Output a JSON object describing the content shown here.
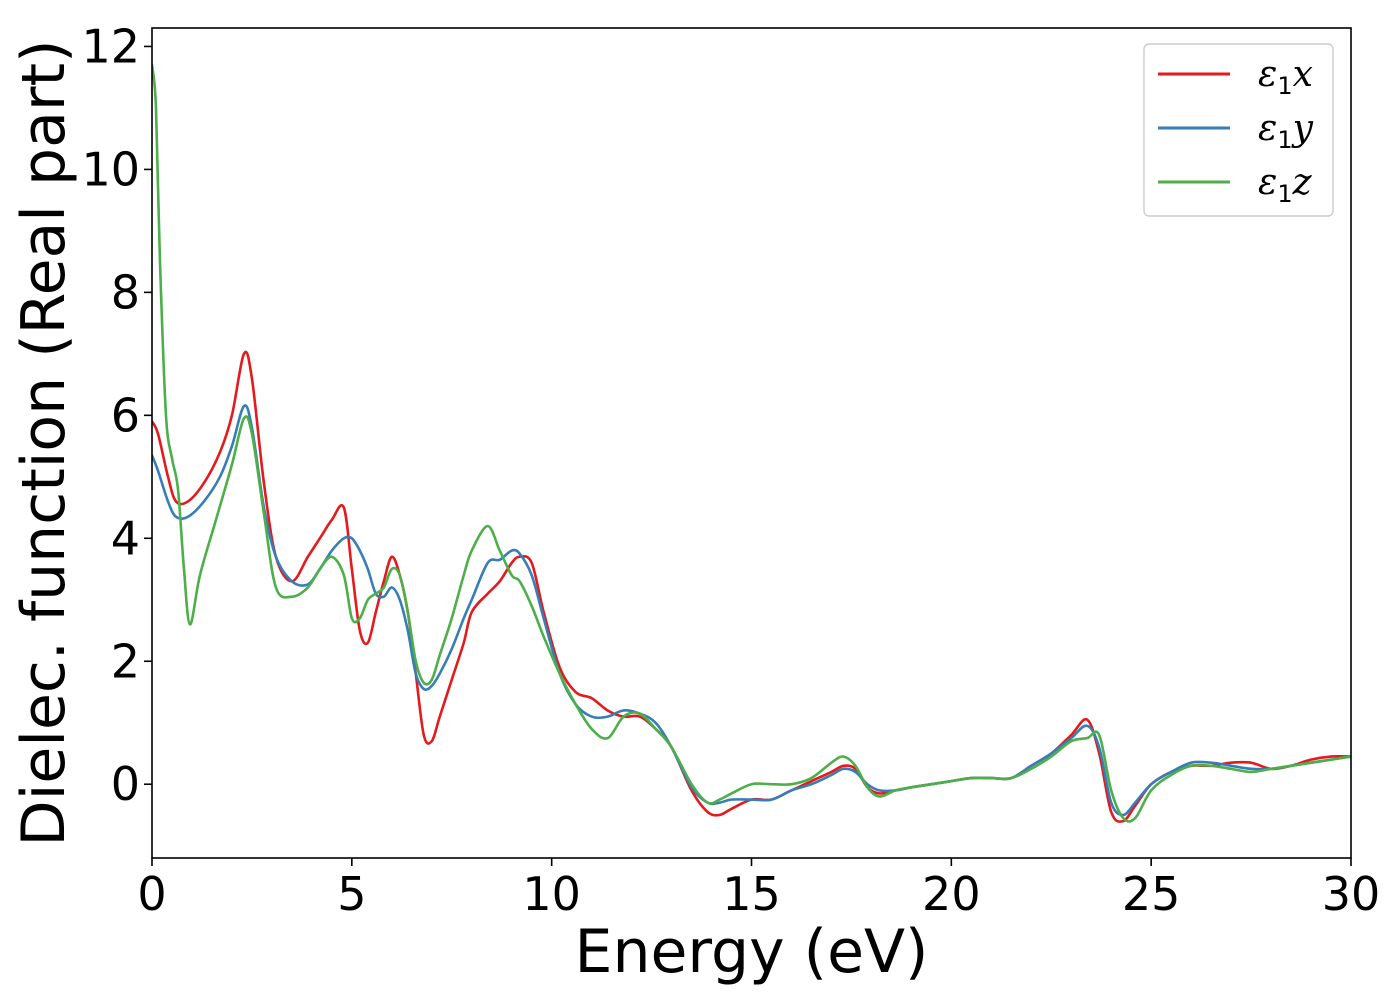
{
  "chart_data": {
    "type": "line",
    "xlabel": "Energy (eV)",
    "ylabel": "Dielec. function (Real part)",
    "xlim": [
      0,
      30
    ],
    "ylim": [
      -1.2,
      12.3
    ],
    "xticks": [
      0,
      5,
      10,
      15,
      20,
      25,
      30
    ],
    "yticks": [
      0,
      2,
      4,
      6,
      8,
      10,
      12
    ],
    "grid": false,
    "legend_position": "top-right",
    "series": [
      {
        "name": "ε₁x",
        "legend_symbol": "ε",
        "legend_sub": "1",
        "legend_var": "x",
        "color": "#e41a1c",
        "x": [
          0,
          0.15,
          0.4,
          0.6,
          0.9,
          1.3,
          1.7,
          2.0,
          2.3,
          2.5,
          2.8,
          3.1,
          3.5,
          3.9,
          4.2,
          4.5,
          4.8,
          5.0,
          5.2,
          5.4,
          5.6,
          5.8,
          6.0,
          6.2,
          6.4,
          6.6,
          6.8,
          7.0,
          7.2,
          7.5,
          7.8,
          8.0,
          8.4,
          8.7,
          9.0,
          9.2,
          9.5,
          9.8,
          10.2,
          10.6,
          11.0,
          11.4,
          11.8,
          12.2,
          12.6,
          13.0,
          13.5,
          13.9,
          14.2,
          14.5,
          15.0,
          15.5,
          16.0,
          16.5,
          17.0,
          17.3,
          17.6,
          17.9,
          18.2,
          18.6,
          19.0,
          19.5,
          20.0,
          20.5,
          21.0,
          21.5,
          22.0,
          22.5,
          23.0,
          23.4,
          23.7,
          24.0,
          24.3,
          24.6,
          25.0,
          25.5,
          26.0,
          26.5,
          27.0,
          27.5,
          28.0,
          28.5,
          29.0,
          29.5,
          30.0
        ],
        "values": [
          5.9,
          5.7,
          5.0,
          4.6,
          4.6,
          4.9,
          5.4,
          6.0,
          7.0,
          6.6,
          4.9,
          3.7,
          3.3,
          3.7,
          4.0,
          4.3,
          4.5,
          3.5,
          2.5,
          2.3,
          2.8,
          3.3,
          3.7,
          3.4,
          2.8,
          1.8,
          0.8,
          0.7,
          1.1,
          1.7,
          2.3,
          2.8,
          3.1,
          3.3,
          3.6,
          3.7,
          3.6,
          2.8,
          1.9,
          1.5,
          1.4,
          1.2,
          1.1,
          1.1,
          0.9,
          0.6,
          -0.1,
          -0.45,
          -0.5,
          -0.4,
          -0.25,
          -0.25,
          -0.1,
          0.05,
          0.2,
          0.3,
          0.25,
          -0.05,
          -0.15,
          -0.1,
          -0.05,
          0.0,
          0.05,
          0.1,
          0.1,
          0.1,
          0.3,
          0.5,
          0.8,
          1.05,
          0.5,
          -0.45,
          -0.6,
          -0.35,
          0.0,
          0.2,
          0.3,
          0.3,
          0.35,
          0.35,
          0.25,
          0.3,
          0.4,
          0.45,
          0.45
        ]
      },
      {
        "name": "ε₁y",
        "legend_symbol": "ε",
        "legend_sub": "1",
        "legend_var": "y",
        "color": "#377eb8",
        "x": [
          0,
          0.15,
          0.4,
          0.6,
          0.9,
          1.3,
          1.7,
          2.0,
          2.3,
          2.5,
          2.8,
          3.1,
          3.5,
          3.9,
          4.2,
          4.5,
          4.8,
          5.0,
          5.2,
          5.4,
          5.6,
          5.8,
          6.0,
          6.2,
          6.4,
          6.6,
          6.8,
          7.0,
          7.2,
          7.5,
          7.8,
          8.0,
          8.4,
          8.7,
          9.0,
          9.2,
          9.5,
          9.8,
          10.2,
          10.6,
          11.0,
          11.4,
          11.8,
          12.2,
          12.6,
          13.0,
          13.5,
          13.9,
          14.2,
          14.5,
          15.0,
          15.5,
          16.0,
          16.5,
          17.0,
          17.3,
          17.6,
          17.9,
          18.2,
          18.6,
          19.0,
          19.5,
          20.0,
          20.5,
          21.0,
          21.5,
          22.0,
          22.5,
          23.0,
          23.4,
          23.7,
          24.0,
          24.3,
          24.6,
          25.0,
          25.5,
          26.0,
          26.5,
          27.0,
          27.5,
          28.0,
          28.5,
          29.0,
          29.5,
          30.0
        ],
        "values": [
          5.35,
          5.1,
          4.6,
          4.35,
          4.35,
          4.6,
          5.0,
          5.5,
          6.15,
          5.8,
          4.5,
          3.7,
          3.3,
          3.25,
          3.5,
          3.8,
          4.0,
          4.0,
          3.8,
          3.5,
          3.1,
          3.05,
          3.2,
          3.0,
          2.5,
          1.8,
          1.55,
          1.6,
          1.8,
          2.2,
          2.7,
          3.0,
          3.6,
          3.65,
          3.8,
          3.75,
          3.4,
          2.7,
          1.8,
          1.3,
          1.1,
          1.1,
          1.2,
          1.15,
          1.0,
          0.6,
          -0.05,
          -0.3,
          -0.3,
          -0.25,
          -0.25,
          -0.25,
          -0.1,
          0.0,
          0.15,
          0.25,
          0.2,
          0.0,
          -0.1,
          -0.1,
          -0.05,
          0.0,
          0.05,
          0.1,
          0.1,
          0.1,
          0.3,
          0.5,
          0.75,
          0.95,
          0.6,
          -0.3,
          -0.5,
          -0.3,
          0.0,
          0.2,
          0.35,
          0.35,
          0.3,
          0.25,
          0.25,
          0.3,
          0.35,
          0.4,
          0.45
        ]
      },
      {
        "name": "ε₁z",
        "legend_symbol": "ε",
        "legend_sub": "1",
        "legend_var": "z",
        "color": "#4daf4a",
        "x": [
          0,
          0.1,
          0.2,
          0.35,
          0.5,
          0.65,
          0.8,
          0.95,
          1.2,
          1.6,
          2.0,
          2.3,
          2.5,
          2.8,
          3.1,
          3.5,
          3.9,
          4.2,
          4.5,
          4.8,
          5.0,
          5.2,
          5.4,
          5.6,
          5.8,
          6.0,
          6.2,
          6.4,
          6.6,
          6.8,
          7.0,
          7.2,
          7.5,
          7.8,
          8.0,
          8.4,
          8.7,
          9.0,
          9.2,
          9.5,
          9.8,
          10.2,
          10.6,
          11.0,
          11.4,
          11.8,
          12.2,
          12.6,
          13.0,
          13.5,
          13.9,
          14.2,
          14.5,
          15.0,
          15.5,
          16.0,
          16.5,
          17.0,
          17.3,
          17.6,
          17.9,
          18.2,
          18.6,
          19.0,
          19.5,
          20.0,
          20.5,
          21.0,
          21.5,
          22.0,
          22.5,
          23.0,
          23.4,
          23.7,
          24.0,
          24.3,
          24.6,
          25.0,
          25.5,
          26.0,
          26.5,
          27.0,
          27.5,
          28.0,
          28.5,
          29.0,
          29.5,
          30.0
        ],
        "values": [
          11.7,
          11.0,
          8.5,
          6.0,
          5.3,
          4.8,
          3.5,
          2.6,
          3.4,
          4.3,
          5.2,
          5.95,
          5.7,
          4.4,
          3.2,
          3.05,
          3.2,
          3.5,
          3.7,
          3.4,
          2.7,
          2.7,
          3.0,
          3.1,
          3.2,
          3.5,
          3.4,
          2.8,
          2.0,
          1.65,
          1.7,
          2.1,
          2.7,
          3.4,
          3.8,
          4.2,
          3.8,
          3.4,
          3.3,
          2.9,
          2.4,
          1.8,
          1.3,
          0.9,
          0.75,
          1.1,
          1.15,
          0.9,
          0.6,
          0.0,
          -0.3,
          -0.25,
          -0.15,
          0.0,
          0.0,
          0.0,
          0.1,
          0.35,
          0.45,
          0.3,
          -0.05,
          -0.2,
          -0.1,
          -0.05,
          0.0,
          0.05,
          0.1,
          0.1,
          0.1,
          0.25,
          0.45,
          0.7,
          0.75,
          0.8,
          -0.1,
          -0.55,
          -0.55,
          -0.1,
          0.15,
          0.3,
          0.3,
          0.25,
          0.2,
          0.25,
          0.3,
          0.35,
          0.4,
          0.45
        ]
      }
    ]
  }
}
